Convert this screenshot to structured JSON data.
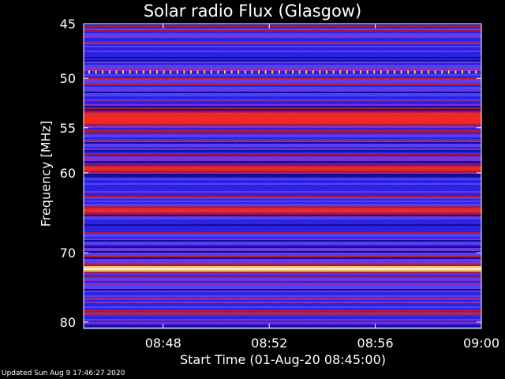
{
  "chart_data": {
    "type": "heatmap",
    "title": "Solar radio Flux (Glasgow)",
    "ylabel": "Frequency [MHz]",
    "xlabel": "Start Time (01-Aug-20 08:45:00)",
    "footer": "Updated Sun Aug  9 17:46:27 2020",
    "xlim": [
      "08:45",
      "09:00"
    ],
    "ylim": [
      45,
      81
    ],
    "y_scale": "log",
    "x_ticks": [
      "08:48",
      "08:52",
      "08:56",
      "09:00"
    ],
    "y_ticks": [
      45,
      50,
      55,
      60,
      70,
      80
    ],
    "grid": false,
    "colormap": [
      "#00008c",
      "#1a1ae0",
      "#4a3cf0",
      "#7a2cc0",
      "#b01020",
      "#ff2000",
      "#ffd040",
      "#ffffe0"
    ],
    "emission_lanes": [
      {
        "freq_mhz": 54.0,
        "level": "strong"
      },
      {
        "freq_mhz": 59.5,
        "level": "strong"
      },
      {
        "freq_mhz": 64.5,
        "level": "strong"
      },
      {
        "freq_mhz": 72.2,
        "level": "very strong"
      }
    ],
    "interference_line_mhz": 49.4
  }
}
